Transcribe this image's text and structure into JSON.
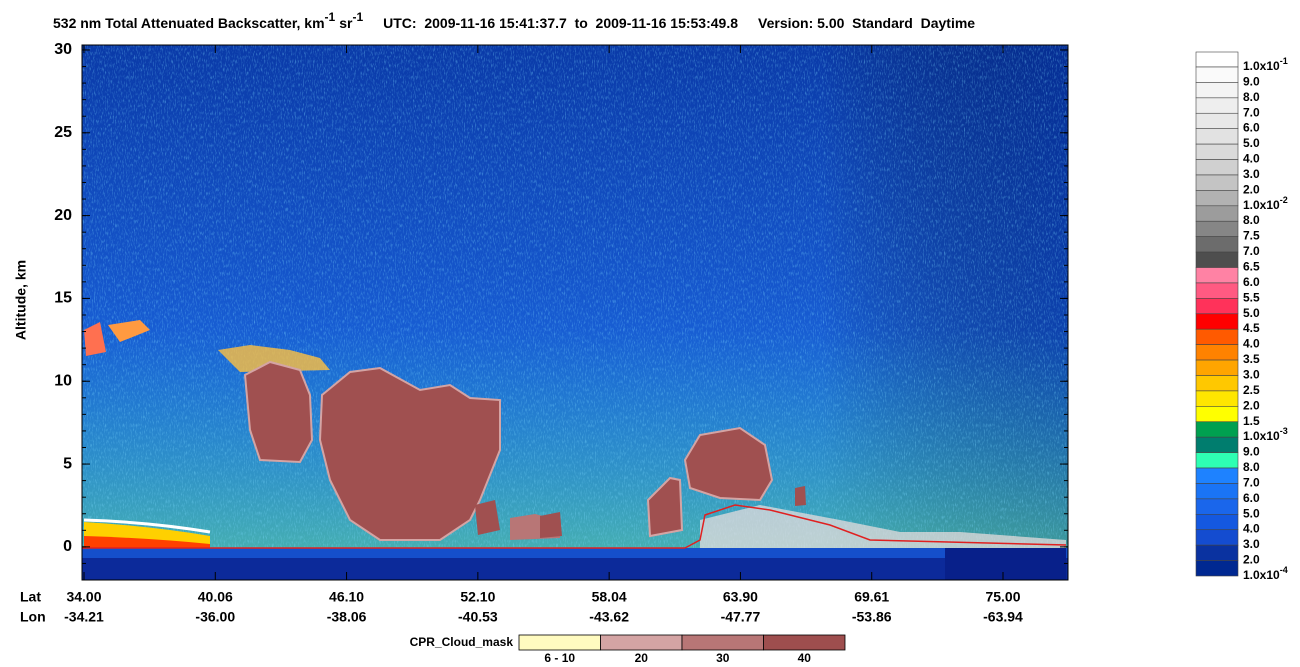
{
  "chart_data": {
    "type": "curtain",
    "title": {
      "main": "532 nm Total Attenuated Backscatter, km",
      "sup1": "-1",
      "mid": "sr",
      "sup2": "-1",
      "utc": "UTC:  2009-11-16 15:41:37.7  to  2009-11-16 15:53:49.8",
      "version": "Version: 5.00  Standard  Daytime"
    },
    "y_label": "Altitude, km",
    "ylim": [
      -2,
      30.3
    ],
    "yticks": [
      0,
      5,
      10,
      15,
      20,
      25,
      30
    ],
    "lat_label": "Lat",
    "lon_label": "Lon",
    "lat": [
      "34.00",
      "40.06",
      "46.10",
      "52.10",
      "58.04",
      "63.90",
      "69.61",
      "75.00"
    ],
    "lon": [
      "-34.21",
      "-36.00",
      "-38.06",
      "-40.53",
      "-43.62",
      "-47.77",
      "-53.86",
      "-63.94"
    ],
    "colorbar": [
      {
        "label": "1.0x10",
        "exp": "-1",
        "color": "#ffffff"
      },
      {
        "label": "9.0",
        "color": "#fafafa"
      },
      {
        "label": "8.0",
        "color": "#f4f4f4"
      },
      {
        "label": "7.0",
        "color": "#eeeeee"
      },
      {
        "label": "6.0",
        "color": "#e8e8e8"
      },
      {
        "label": "5.0",
        "color": "#e2e2e2"
      },
      {
        "label": "4.0",
        "color": "#dadada"
      },
      {
        "label": "3.0",
        "color": "#d0d0d0"
      },
      {
        "label": "2.0",
        "color": "#c4c4c4"
      },
      {
        "label": "1.0x10",
        "exp": "-2",
        "color": "#b2b2b2"
      },
      {
        "label": "8.0",
        "color": "#9c9c9c"
      },
      {
        "label": "7.5",
        "color": "#868686"
      },
      {
        "label": "7.0",
        "color": "#6c6c6c"
      },
      {
        "label": "6.5",
        "color": "#4e4e4e"
      },
      {
        "label": "6.0",
        "color": "#ff82a4"
      },
      {
        "label": "5.5",
        "color": "#ff5a82"
      },
      {
        "label": "5.0",
        "color": "#ff325a"
      },
      {
        "label": "4.5",
        "color": "#ff0000"
      },
      {
        "label": "4.0",
        "color": "#ff5a00"
      },
      {
        "label": "3.5",
        "color": "#ff8200"
      },
      {
        "label": "3.0",
        "color": "#ffa500"
      },
      {
        "label": "2.5",
        "color": "#ffc800"
      },
      {
        "label": "2.0",
        "color": "#ffe600"
      },
      {
        "label": "1.5",
        "color": "#ffff00"
      },
      {
        "label": "1.0x10",
        "exp": "-3",
        "color": "#00a050"
      },
      {
        "label": "9.0",
        "color": "#007d6e"
      },
      {
        "label": "8.0",
        "color": "#2effb3"
      },
      {
        "label": "7.0",
        "color": "#1e82ff"
      },
      {
        "label": "6.0",
        "color": "#1a74f5"
      },
      {
        "label": "5.0",
        "color": "#1a66eb"
      },
      {
        "label": "4.0",
        "color": "#1458e0"
      },
      {
        "label": "3.0",
        "color": "#144cd0"
      },
      {
        "label": "2.0",
        "color": "#0a32a0"
      },
      {
        "label": "1.0x10",
        "exp": "-4",
        "color": "#002891"
      }
    ],
    "cloud_mask": {
      "title": "CPR_Cloud_mask",
      "entries": [
        {
          "label": "6 - 10",
          "color": "#fffbc0"
        },
        {
          "label": "20",
          "color": "#d4a4a4"
        },
        {
          "label": "30",
          "color": "#b87676"
        },
        {
          "label": "40",
          "color": "#9e4e4e"
        }
      ]
    }
  }
}
